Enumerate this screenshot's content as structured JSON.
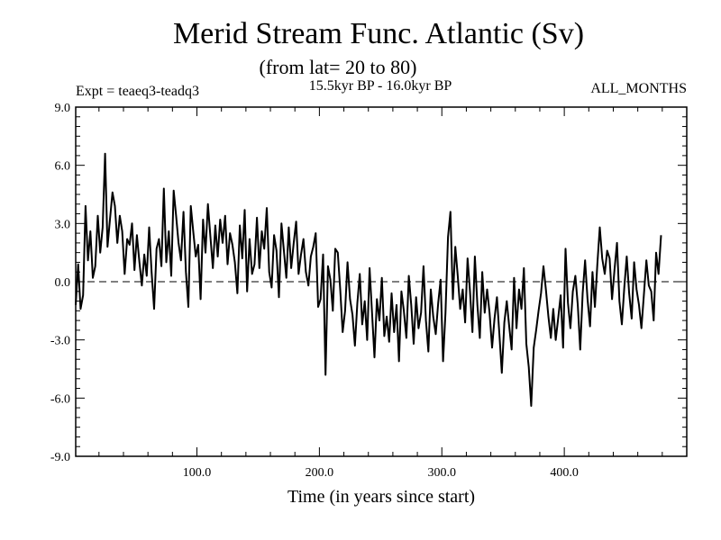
{
  "chart_data": {
    "type": "line",
    "title": "Merid Stream Func. Atlantic (Sv)",
    "subtitle": "(from lat= 20 to 80)",
    "experiment_label": "Expt = teaeq3-teadq3",
    "period_label": "15.5kyr BP - 16.0kyr BP",
    "months_label": "ALL_MONTHS",
    "xlabel": "Time (in years since start)",
    "ylabel": "",
    "xlim": [
      1,
      500
    ],
    "ylim": [
      -9.0,
      9.0
    ],
    "x_ticks": [
      100,
      200,
      300,
      400
    ],
    "x_tick_labels": [
      "100.0",
      "200.0",
      "300.0",
      "400.0"
    ],
    "y_ticks": [
      -9,
      -6,
      -3,
      0,
      3,
      6,
      9
    ],
    "y_tick_labels": [
      "-9.0",
      "-6.0",
      "-3.0",
      "0.0",
      "3.0",
      "6.0",
      "9.0"
    ],
    "reference_line": {
      "y": 0.0,
      "style": "dashed"
    },
    "series": [
      {
        "name": "Merid Stream Func. Atlantic",
        "x_start": 1,
        "x_step": 2,
        "values": [
          -1.2,
          0.9,
          -1.4,
          -0.7,
          3.9,
          1.1,
          2.6,
          0.2,
          0.8,
          3.4,
          1.5,
          2.8,
          6.6,
          1.8,
          3.2,
          4.6,
          3.9,
          2.0,
          3.4,
          2.6,
          0.4,
          2.2,
          1.9,
          3.0,
          0.6,
          2.4,
          1.0,
          -0.2,
          1.4,
          0.3,
          2.8,
          0.5,
          -1.4,
          1.7,
          2.2,
          0.8,
          4.8,
          1.0,
          2.6,
          0.3,
          4.7,
          3.4,
          2.0,
          1.1,
          3.6,
          0.5,
          -1.3,
          3.9,
          2.6,
          1.3,
          1.9,
          -0.9,
          3.2,
          1.5,
          4.0,
          2.3,
          0.7,
          2.9,
          1.3,
          3.2,
          2.0,
          3.4,
          0.9,
          2.5,
          1.9,
          1.0,
          -0.6,
          2.9,
          1.2,
          3.7,
          -0.5,
          2.2,
          0.4,
          0.9,
          3.3,
          0.7,
          2.6,
          1.7,
          3.8,
          0.5,
          -0.3,
          2.4,
          1.6,
          -0.8,
          3.0,
          1.6,
          0.2,
          2.8,
          0.7,
          2.0,
          3.1,
          0.4,
          1.4,
          2.2,
          0.5,
          -0.2,
          1.3,
          1.8,
          2.5,
          -1.3,
          -0.9,
          1.4,
          -4.8,
          0.8,
          0.1,
          -1.5,
          1.7,
          1.5,
          -0.4,
          -2.6,
          -1.5,
          1.0,
          -0.9,
          -1.7,
          -3.3,
          -1.1,
          0.4,
          -2.2,
          -1.0,
          -3.0,
          0.7,
          -1.6,
          -3.9,
          -0.9,
          -2.0,
          0.2,
          -2.8,
          -1.8,
          -3.1,
          -0.6,
          -2.6,
          -1.2,
          -4.1,
          -0.5,
          -1.5,
          -2.9,
          0.3,
          -1.2,
          -3.2,
          -0.8,
          -2.4,
          -1.6,
          0.8,
          -2.0,
          -3.6,
          -0.4,
          -1.8,
          -2.7,
          -1.1,
          0.1,
          -4.1,
          -1.6,
          2.3,
          3.6,
          -0.9,
          1.8,
          0.3,
          -1.4,
          -0.4,
          -2.1,
          1.2,
          -0.5,
          -2.6,
          1.3,
          -1.2,
          -2.9,
          0.5,
          -1.6,
          -0.4,
          -1.6,
          -3.4,
          -1.9,
          -0.8,
          -2.7,
          -4.7,
          -2.1,
          -1.0,
          -2.3,
          -3.5,
          0.2,
          -2.4,
          -0.4,
          -1.4,
          0.7,
          -3.2,
          -4.4,
          -6.4,
          -3.4,
          -2.5,
          -1.5,
          -0.6,
          0.8,
          -0.4,
          -1.8,
          -2.9,
          -1.4,
          -3.0,
          -1.9,
          -0.7,
          -3.4,
          1.7,
          -1.1,
          -2.4,
          -0.5,
          0.3,
          -1.2,
          -3.5,
          -0.6,
          1.1,
          -0.9,
          -2.3,
          0.5,
          -1.3,
          0.9,
          2.8,
          1.2,
          0.4,
          1.6,
          1.2,
          -0.9,
          0.6,
          2.0,
          -1.0,
          -2.2,
          -0.3,
          1.3,
          -0.6,
          -1.9,
          1.0,
          -0.4,
          -1.2,
          -2.4,
          -0.7,
          1.1,
          -0.2,
          -0.5,
          -2.0,
          1.5,
          0.4,
          2.4
        ]
      }
    ]
  }
}
